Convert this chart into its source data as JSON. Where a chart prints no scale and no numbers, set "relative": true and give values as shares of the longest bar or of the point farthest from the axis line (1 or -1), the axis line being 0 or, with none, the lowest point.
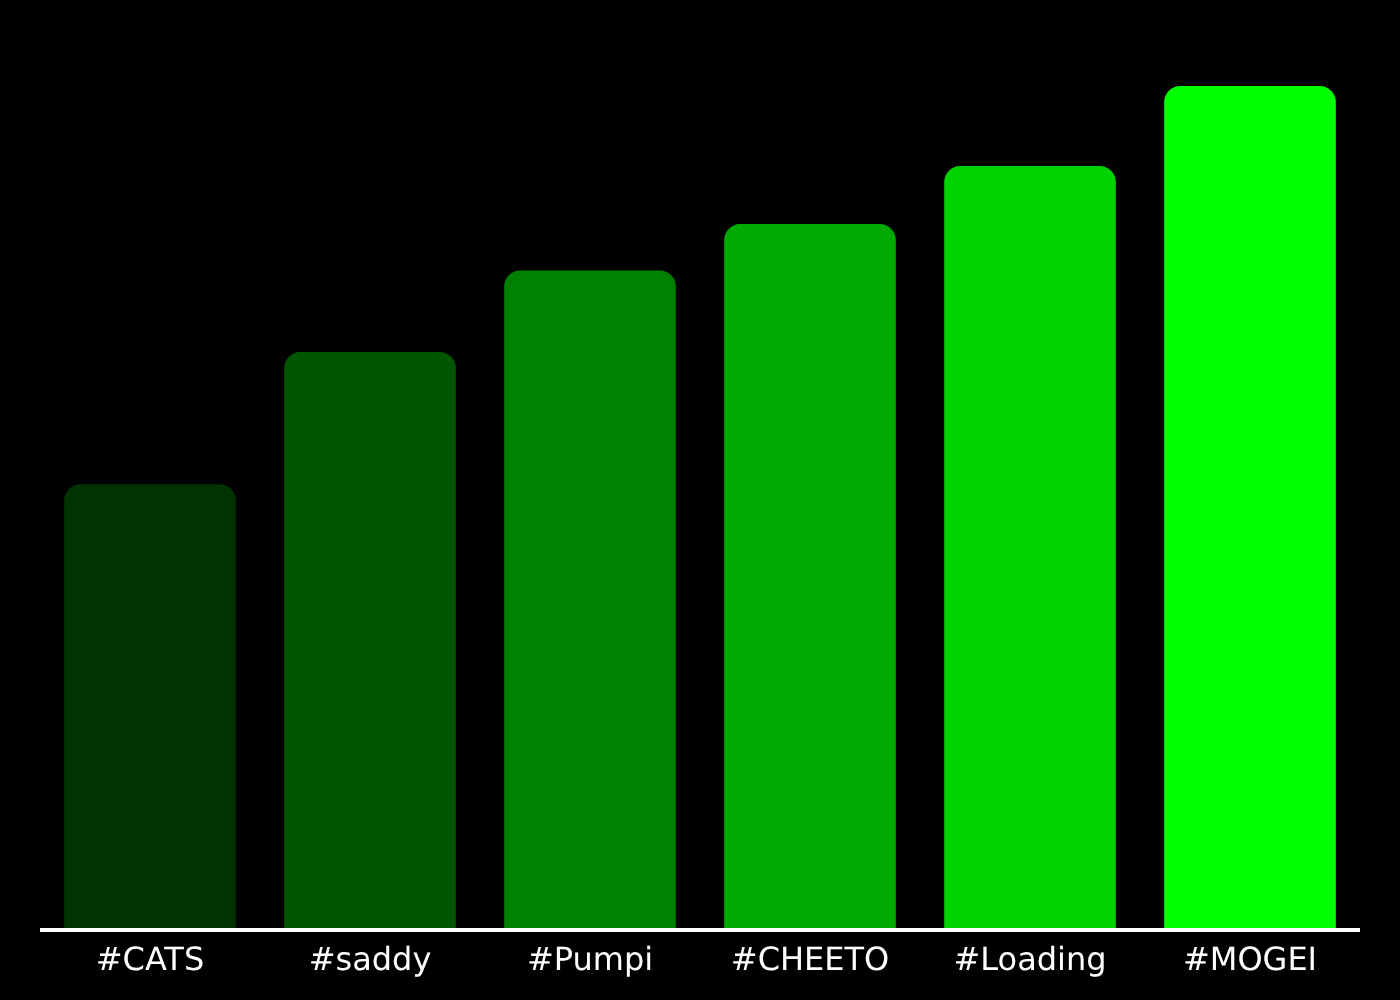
{
  "chart_data": {
    "type": "bar",
    "relative": true,
    "categories": [
      "#CATS",
      "#saddy",
      "#Pumpi",
      "#CHEETO",
      "#Loading",
      "#MOGEI"
    ],
    "values": [
      0.527,
      0.684,
      0.781,
      0.836,
      0.905,
      1.0
    ],
    "colors": [
      "#003300",
      "#005500",
      "#008000",
      "#00aa00",
      "#00d400",
      "#00ff00"
    ]
  }
}
